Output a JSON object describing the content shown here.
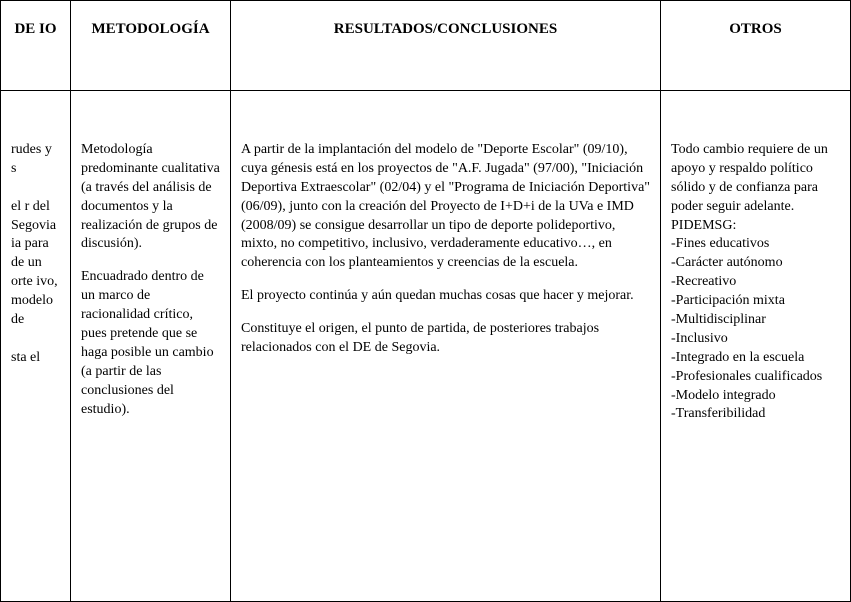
{
  "table": {
    "headers": {
      "col1": " DE IO",
      "col2": "METODOLOGÍA",
      "col3": "RESULTADOS/CONCLUSIONES",
      "col4": "OTROS"
    },
    "row": {
      "col1": "rudes y s\n\nel r del Segovia ia para de un orte ivo, modelo de\n\nsta el",
      "col2_p1": "Metodología predominante cualitativa (a través del análisis de documentos y la realización de grupos de discusión).",
      "col2_p2": "Encuadrado dentro de un marco de racionalidad crítico, pues pretende que se haga posible un cambio (a partir de las conclusiones del estudio).",
      "col3_p1": "A partir de la implantación del modelo de \"Deporte Escolar\" (09/10), cuya génesis está en los proyectos de \"A.F. Jugada\" (97/00), \"Iniciación Deportiva Extraescolar\" (02/04) y el \"Programa de Iniciación Deportiva\" (06/09), junto con la creación del Proyecto de I+D+i de la UVa e IMD (2008/09) se consigue desarrollar un tipo de deporte polideportivo, mixto, no competitivo, inclusivo, verdaderamente educativo…, en coherencia con los planteamientos y creencias de la escuela.",
      "col3_p2": "El proyecto continúa y aún quedan muchas cosas  que hacer y mejorar.",
      "col3_p3": "Constituye el origen, el punto de partida, de posteriores trabajos relacionados con el DE de Segovia.",
      "col4_p1": "Todo cambio requiere de un apoyo y respaldo político sólido y de confianza para poder seguir adelante.",
      "col4_p2": "PIDEMSG:",
      "col4_l1": "-Fines educativos",
      "col4_l2": "-Carácter autónomo",
      "col4_l3": "-Recreativo",
      "col4_l4": "-Participación mixta",
      "col4_l5": "-Multidisciplinar",
      "col4_l6": "-Inclusivo",
      "col4_l7": "-Integrado en la escuela",
      "col4_l8": "-Profesionales cualificados",
      "col4_l9": "-Modelo integrado",
      "col4_l10": "-Transferibilidad"
    }
  }
}
